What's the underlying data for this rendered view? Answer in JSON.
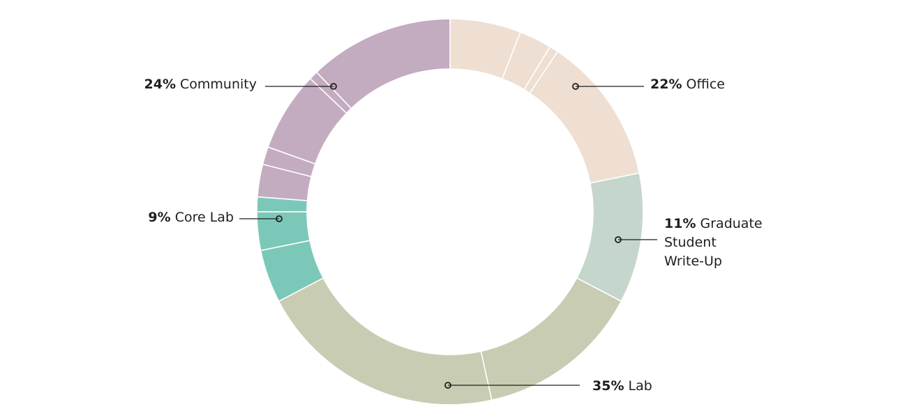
{
  "chart_data": {
    "type": "pie",
    "title": "",
    "categories": [
      "Office",
      "Graduate Student Write-Up",
      "Lab",
      "Core Lab",
      "Community"
    ],
    "values": [
      22,
      11,
      35,
      9,
      24
    ],
    "labels": [
      {
        "pct": "22%",
        "name": [
          "Office"
        ]
      },
      {
        "pct": "11%",
        "name": [
          "Graduate",
          "Student",
          "Write-Up"
        ]
      },
      {
        "pct": "35%",
        "name": [
          "Lab"
        ]
      },
      {
        "pct": "9%",
        "name": [
          "Core Lab"
        ]
      },
      {
        "pct": "24%",
        "name": [
          "Community"
        ]
      }
    ],
    "sub_segments": [
      [
        6,
        2.75,
        0.75,
        12.5
      ],
      [
        11
      ],
      [
        14,
        21
      ],
      [
        4.5,
        3.25,
        1.25
      ],
      [
        2.75,
        1.5,
        6.75,
        0.75,
        12.25
      ]
    ],
    "colors": [
      "#eedfd2",
      "#c5d6cc",
      "#c8ccb2",
      "#7cc8b8",
      "#c3abc0"
    ],
    "legend": "callouts"
  }
}
